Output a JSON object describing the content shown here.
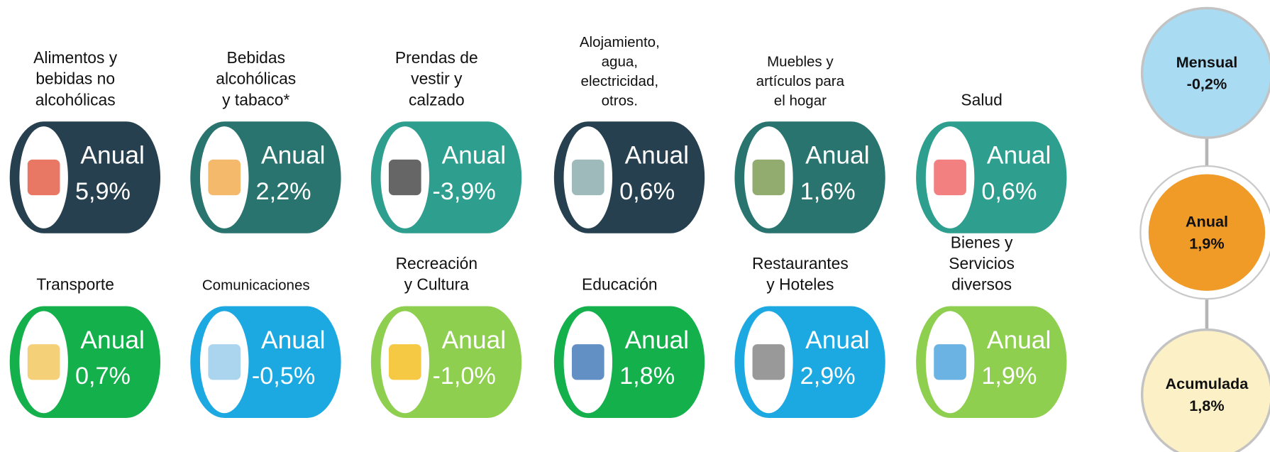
{
  "groups": [
    {
      "label": [
        "Alimentos y",
        "bebidas no",
        "alcohólicas"
      ],
      "period": "Anual",
      "value": "5,9%"
    },
    {
      "label": [
        "Bebidas",
        "alcohólicas",
        "y tabaco*"
      ],
      "period": "Anual",
      "value": "2,2%"
    },
    {
      "label": [
        "Prendas de",
        "vestir y",
        "calzado"
      ],
      "period": "Anual",
      "value": "-3,9%"
    },
    {
      "label": [
        "Alojamiento,",
        "agua,",
        "electricidad,",
        "otros."
      ],
      "period": "Anual",
      "value": "0,6%"
    },
    {
      "label": [
        "Muebles y",
        "artículos para",
        "el hogar"
      ],
      "period": "Anual",
      "value": "1,6%"
    },
    {
      "label": [
        "Salud"
      ],
      "period": "Anual",
      "value": "0,6%"
    },
    {
      "label": [
        "Transporte"
      ],
      "period": "Anual",
      "value": "0,7%"
    },
    {
      "label": [
        "Comunicaciones"
      ],
      "period": "Anual",
      "value": "-0,5%"
    },
    {
      "label": [
        "Recreación",
        "y Cultura"
      ],
      "period": "Anual",
      "value": "-1,0%"
    },
    {
      "label": [
        "Educación"
      ],
      "period": "Anual",
      "value": "1,8%"
    },
    {
      "label": [
        "Restaurantes",
        "y Hoteles"
      ],
      "period": "Anual",
      "value": "2,9%"
    },
    {
      "label": [
        "Bienes y",
        "Servicios",
        "diversos"
      ],
      "period": "Anual",
      "value": "1,9%"
    }
  ],
  "summary": [
    {
      "period": "Mensual",
      "value": "-0,2%"
    },
    {
      "period": "Anual",
      "value": "1,9%"
    },
    {
      "period": "Acumulada",
      "value": "1,8%"
    }
  ]
}
